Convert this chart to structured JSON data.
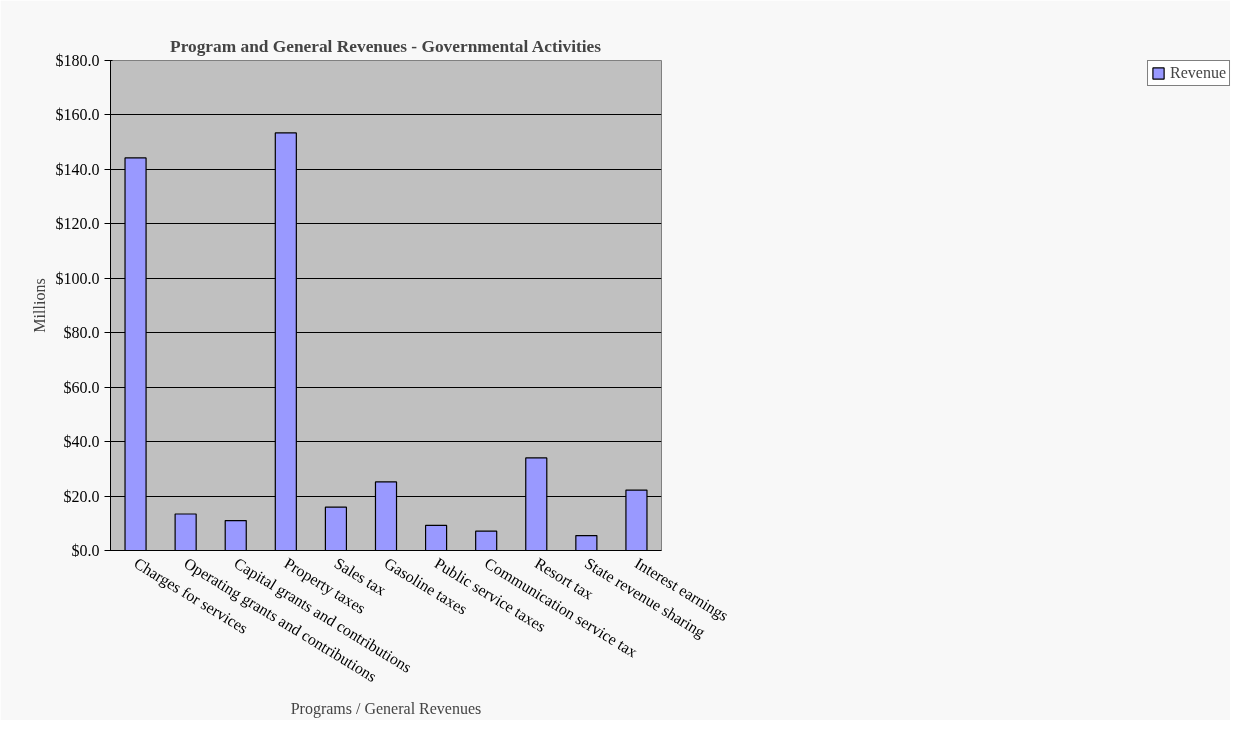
{
  "chart_data": {
    "type": "bar",
    "title": "Program and General Revenues - Governmental Activities",
    "xlabel": "Programs / General Revenues",
    "ylabel": "Millions",
    "categories": [
      "Charges for services",
      "Operating grants and contributions",
      "Capital grants and contributions",
      "Property taxes",
      "Sales tax",
      "Gasoline taxes",
      "Public service taxes",
      "Communication service tax",
      "Resort tax",
      "State revenue sharing",
      "Interest earnings"
    ],
    "series": [
      {
        "name": "Revenue",
        "color": "#9999ff",
        "values": [
          144.2,
          13.4,
          11.0,
          153.4,
          15.9,
          25.2,
          9.2,
          7.1,
          34.0,
          5.5,
          22.2
        ]
      }
    ],
    "ylim": [
      0,
      180
    ],
    "yticks": [
      {
        "value": 0,
        "label": "$0.0"
      },
      {
        "value": 20,
        "label": "$20.0"
      },
      {
        "value": 40,
        "label": "$40.0"
      },
      {
        "value": 60,
        "label": "$60.0"
      },
      {
        "value": 80,
        "label": "$80.0"
      },
      {
        "value": 100,
        "label": "$100.0"
      },
      {
        "value": 120,
        "label": "$120.0"
      },
      {
        "value": 140,
        "label": "$140.0"
      },
      {
        "value": 160,
        "label": "$160.0"
      },
      {
        "value": 180,
        "label": "$180.0"
      }
    ],
    "grid": "y",
    "legend": "top right"
  }
}
